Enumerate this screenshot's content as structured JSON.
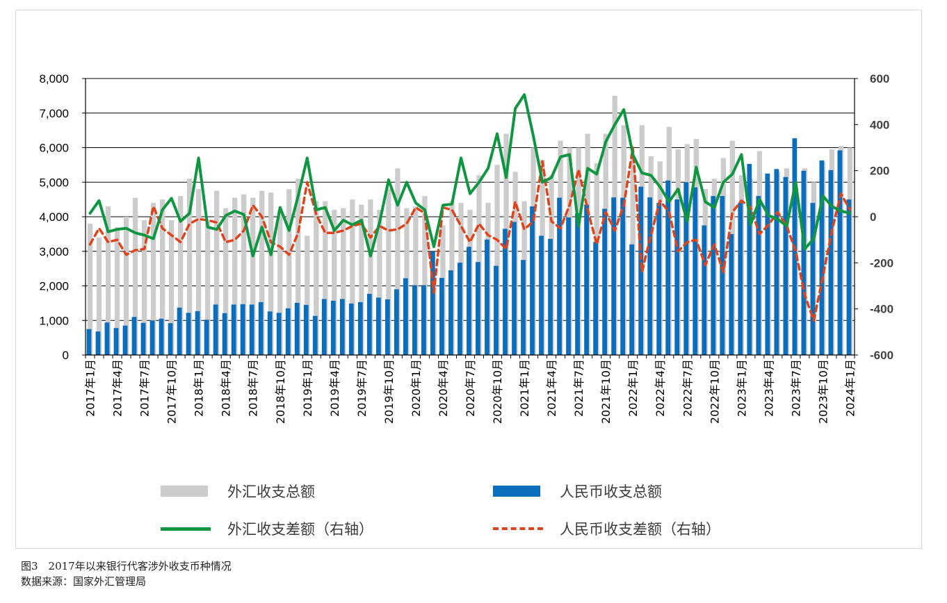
{
  "chart_data": {
    "type": "bar",
    "title": "",
    "xlabel": "",
    "ylabel": "",
    "ylim": [
      0,
      8000
    ],
    "ylim_right": [
      -600,
      600
    ],
    "y_ticks_left": [
      "8,000",
      "7,000",
      "6,000",
      "5,000",
      "4,000",
      "3,000",
      "2,000",
      "1,000",
      "0"
    ],
    "y_ticks_right": [
      "600",
      "400",
      "200",
      "0",
      "-200",
      "-400",
      "-600"
    ],
    "grid": true,
    "legend_position": "bottom",
    "categories": [
      "2017-01",
      "2017-02",
      "2017-03",
      "2017-04",
      "2017-05",
      "2017-06",
      "2017-07",
      "2017-08",
      "2017-09",
      "2017-10",
      "2017-11",
      "2017-12",
      "2018-01",
      "2018-02",
      "2018-03",
      "2018-04",
      "2018-05",
      "2018-06",
      "2018-07",
      "2018-08",
      "2018-09",
      "2018-10",
      "2018-11",
      "2018-12",
      "2019-01",
      "2019-02",
      "2019-03",
      "2019-04",
      "2019-05",
      "2019-06",
      "2019-07",
      "2019-08",
      "2019-09",
      "2019-10",
      "2019-11",
      "2019-12",
      "2020-01",
      "2020-02",
      "2020-03",
      "2020-04",
      "2020-05",
      "2020-06",
      "2020-07",
      "2020-08",
      "2020-09",
      "2020-10",
      "2020-11",
      "2020-12",
      "2021-01",
      "2021-02",
      "2021-03",
      "2021-04",
      "2021-05",
      "2021-06",
      "2021-07",
      "2021-08",
      "2021-09",
      "2021-10",
      "2021-11",
      "2021-12",
      "2022-01",
      "2022-02",
      "2022-03",
      "2022-04",
      "2022-05",
      "2022-06",
      "2022-07",
      "2022-08",
      "2022-09",
      "2022-10",
      "2022-11",
      "2022-12",
      "2023-01",
      "2023-02",
      "2023-03",
      "2023-04",
      "2023-05",
      "2023-06",
      "2023-07",
      "2023-08",
      "2023-09",
      "2023-10",
      "2023-11",
      "2023-12",
      "2024-01"
    ],
    "x_tick_labels": [
      "2017年1月",
      "2017年4月",
      "2017年7月",
      "2017年10月",
      "2018年1月",
      "2018年4月",
      "2018年7月",
      "2018年10月",
      "2019年1月",
      "2019年4月",
      "2019年7月",
      "2019年10月",
      "2020年1月",
      "2020年4月",
      "2020年7月",
      "2020年10月",
      "2021年1月",
      "2021年4月",
      "2021年7月",
      "2021年10月",
      "2022年1月",
      "2022年4月",
      "2022年7月",
      "2022年10月",
      "2023年1月",
      "2023年4月",
      "2023年7月",
      "2023年10月",
      "2024年1月"
    ],
    "series": [
      {
        "name": "外汇收支总额",
        "type": "bar",
        "axis": "left",
        "color": "#cccccc",
        "values": [
          3800,
          3400,
          4300,
          3700,
          4000,
          4550,
          3900,
          4400,
          4500,
          3900,
          4600,
          5100,
          4800,
          3900,
          4750,
          4250,
          4550,
          4650,
          4550,
          4750,
          4700,
          4200,
          4800,
          5100,
          3450,
          4450,
          4450,
          4200,
          4250,
          4500,
          4350,
          4500,
          4200,
          4800,
          5400,
          4250,
          4300,
          4600,
          2250,
          3750,
          4450,
          4400,
          4200,
          5200,
          4400,
          5500,
          6400,
          5300,
          4450,
          6000,
          5650,
          5200,
          6200,
          6000,
          6000,
          6400,
          5550,
          6400,
          7500,
          6650,
          5700,
          6650,
          5750,
          5600,
          6600,
          5950,
          6100,
          6250,
          4800,
          5100,
          5700,
          6200,
          5200,
          5100,
          5900,
          4950,
          5300,
          5400,
          4850,
          5400,
          5000,
          5600,
          5950,
          6050,
          6000
        ]
      },
      {
        "name": "人民币收支总额",
        "type": "bar",
        "axis": "left",
        "color": "#0a6ebd",
        "values": [
          750,
          680,
          940,
          780,
          850,
          1100,
          930,
          1000,
          1050,
          920,
          1370,
          1220,
          1270,
          1020,
          1460,
          1210,
          1460,
          1470,
          1460,
          1530,
          1260,
          1220,
          1350,
          1510,
          1450,
          1130,
          1620,
          1570,
          1620,
          1490,
          1530,
          1770,
          1660,
          1610,
          1900,
          2220,
          2020,
          2020,
          3000,
          2230,
          2450,
          2670,
          3130,
          2690,
          3340,
          2580,
          3650,
          3850,
          2750,
          4300,
          3450,
          3360,
          4550,
          3980,
          4100,
          4350,
          3270,
          4230,
          4560,
          4550,
          3200,
          4870,
          4560,
          4400,
          5050,
          4500,
          5000,
          4850,
          3750,
          4600,
          4600,
          3500,
          4400,
          5530,
          4600,
          5250,
          5380,
          5150,
          6270,
          5330,
          4400,
          5630,
          5350,
          5920,
          4500
        ]
      },
      {
        "name": "外汇收支差额（右轴）",
        "type": "line",
        "axis": "right",
        "color": "#0f9640",
        "values": [
          15,
          70,
          -65,
          -55,
          -50,
          -70,
          -80,
          -95,
          30,
          80,
          -20,
          15,
          255,
          -45,
          -55,
          5,
          25,
          10,
          -170,
          -45,
          -165,
          40,
          -60,
          90,
          255,
          30,
          40,
          -60,
          -15,
          -35,
          -15,
          -170,
          -25,
          160,
          50,
          150,
          60,
          30,
          -130,
          50,
          55,
          255,
          100,
          150,
          210,
          360,
          170,
          470,
          530,
          350,
          150,
          170,
          260,
          270,
          -40,
          210,
          185,
          325,
          400,
          465,
          270,
          190,
          180,
          130,
          65,
          120,
          -20,
          215,
          65,
          40,
          150,
          185,
          270,
          -35,
          75,
          5,
          -10,
          -40,
          150,
          -140,
          -95,
          90,
          45,
          25,
          15
        ]
      },
      {
        "name": "人民币收支差额（右轴）",
        "type": "line",
        "axis": "right",
        "color": "#e0421a",
        "values": [
          -120,
          -50,
          -110,
          -100,
          -165,
          -145,
          -140,
          45,
          -50,
          -80,
          -110,
          -30,
          -10,
          -15,
          -25,
          -110,
          -100,
          -60,
          50,
          0,
          -110,
          -130,
          -165,
          -70,
          150,
          10,
          -70,
          -70,
          -60,
          -40,
          -30,
          -90,
          -40,
          -60,
          -55,
          -30,
          40,
          15,
          -330,
          40,
          30,
          -40,
          -110,
          -30,
          -80,
          -100,
          -140,
          65,
          -55,
          -20,
          240,
          -20,
          -50,
          50,
          205,
          30,
          -120,
          20,
          -60,
          50,
          300,
          -240,
          -80,
          70,
          20,
          -150,
          -110,
          -100,
          -210,
          -120,
          -240,
          20,
          70,
          40,
          -75,
          -35,
          20,
          -40,
          -150,
          -340,
          -450,
          -260,
          -60,
          100,
          30
        ]
      }
    ]
  },
  "legend": {
    "fx_total": "外汇收支总额",
    "rmb_total": "人民币收支总额",
    "fx_balance": "外汇收支差额（右轴）",
    "rmb_balance": "人民币收支差额（右轴）"
  },
  "colors": {
    "fx_total": "#cccccc",
    "rmb_total": "#0a6ebd",
    "fx_balance": "#0f9640",
    "rmb_balance": "#e0421a",
    "axis": "#000000"
  },
  "caption": {
    "figure": "图3　2017年以来银行代客涉外收支币种情况",
    "source": "数据来源：国家外汇管理局"
  }
}
